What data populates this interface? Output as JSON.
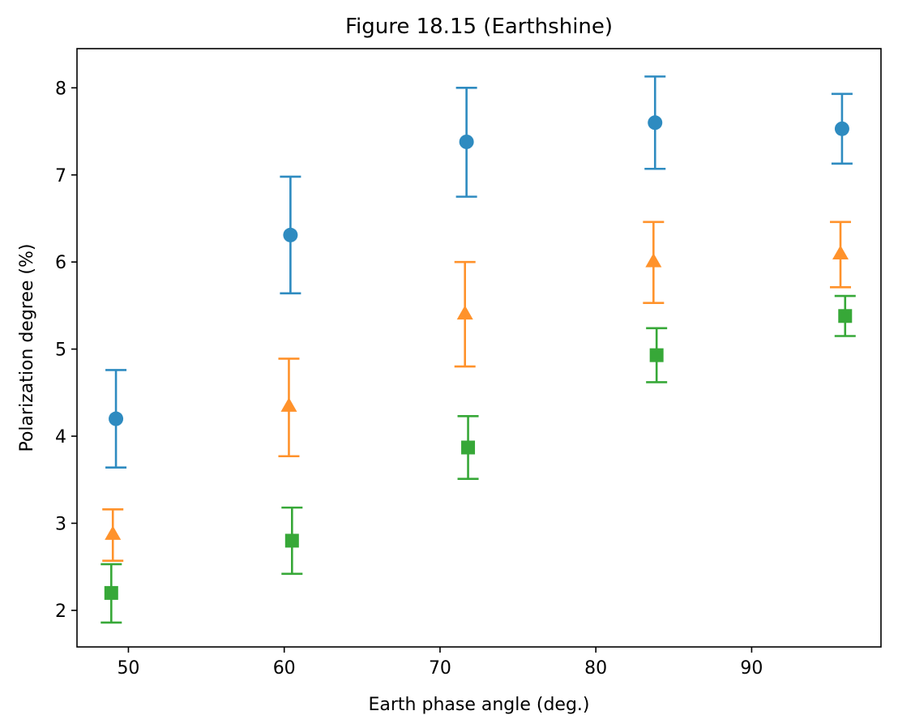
{
  "chart_data": {
    "type": "scatter",
    "title": "Figure 18.15 (Earthshine)",
    "xlabel": "Earth phase angle (deg.)",
    "ylabel": "Polarization degree (%)",
    "xlim": [
      46.7,
      98.3
    ],
    "ylim": [
      1.58,
      8.45
    ],
    "xticks": [
      50,
      60,
      70,
      80,
      90
    ],
    "yticks": [
      2,
      3,
      4,
      5,
      6,
      7,
      8
    ],
    "grid": false,
    "series": [
      {
        "color": "#2e8bc0",
        "marker": "circle",
        "x": [
          49.2,
          60.4,
          71.7,
          83.8,
          95.8
        ],
        "y": [
          4.2,
          6.31,
          7.38,
          7.6,
          7.53
        ],
        "err_low": [
          3.64,
          5.64,
          6.75,
          7.07,
          7.13
        ],
        "err_high": [
          4.76,
          6.98,
          8.0,
          8.13,
          7.93
        ]
      },
      {
        "color": "#ff922b",
        "marker": "triangle",
        "x": [
          49.0,
          60.3,
          71.6,
          83.7,
          95.7
        ],
        "y": [
          2.88,
          4.35,
          5.41,
          6.01,
          6.1
        ],
        "err_low": [
          2.57,
          3.77,
          4.8,
          5.53,
          5.71
        ],
        "err_high": [
          3.16,
          4.89,
          6.0,
          6.46,
          6.46
        ]
      },
      {
        "color": "#37a838",
        "marker": "square",
        "x": [
          48.9,
          60.5,
          71.8,
          83.9,
          96.0
        ],
        "y": [
          2.2,
          2.8,
          3.87,
          4.93,
          5.38
        ],
        "err_low": [
          1.86,
          2.42,
          3.51,
          4.62,
          5.15
        ],
        "err_high": [
          2.53,
          3.18,
          4.23,
          5.24,
          5.61
        ]
      }
    ]
  }
}
